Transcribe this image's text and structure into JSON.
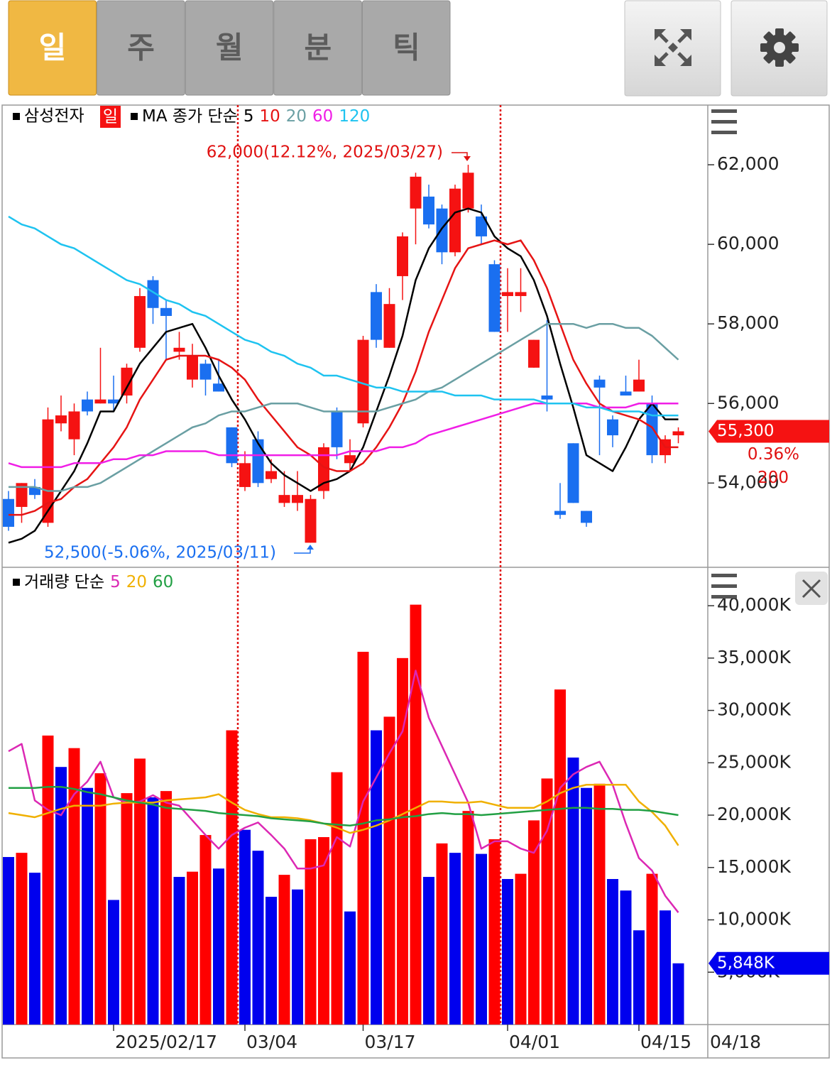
{
  "toolbar": {
    "tabs": [
      "일",
      "주",
      "월",
      "분",
      "틱"
    ],
    "active": 0
  },
  "chart_data": [
    {
      "type": "candlestick",
      "title": "삼성전자",
      "period_badge": "일",
      "ma_label": "MA 종가 단순",
      "up_color": "#f51212",
      "down_color": "#1a6ff0",
      "open": [
        53600,
        53400,
        53900,
        53000,
        55500,
        55100,
        56100,
        56000,
        56100,
        56200,
        57400,
        59100,
        58400,
        57300,
        56600,
        57000,
        56500,
        55400,
        53900,
        55100,
        54100,
        53500,
        53500,
        52500,
        53800,
        55800,
        54500,
        55500,
        58800,
        57400,
        59200,
        60900,
        61200,
        60900,
        59800,
        60900,
        60700,
        59500,
        58700,
        58700,
        56900,
        56200,
        53300,
        55000,
        53300,
        56600,
        55600,
        56300,
        56300,
        56000,
        54700,
        55200
      ],
      "high": [
        53800,
        54000,
        54100,
        55900,
        56200,
        56000,
        56300,
        57400,
        56700,
        57000,
        58900,
        59200,
        58600,
        57800,
        57500,
        57100,
        57100,
        55400,
        54800,
        55300,
        54600,
        54300,
        54300,
        53700,
        55000,
        55900,
        55100,
        57700,
        59000,
        58900,
        60300,
        61800,
        61500,
        61000,
        61500,
        62000,
        61000,
        59600,
        59400,
        59400,
        57600,
        58100,
        54000,
        55000,
        53300,
        56700,
        55700,
        56700,
        57100,
        56200,
        55200,
        55400
      ],
      "low": [
        52800,
        53000,
        53600,
        52900,
        55300,
        54700,
        55700,
        56000,
        55800,
        56000,
        57300,
        58000,
        57100,
        57100,
        56400,
        56200,
        56300,
        54400,
        53800,
        53900,
        54000,
        53400,
        53300,
        52500,
        53600,
        54600,
        54300,
        55400,
        57400,
        57400,
        58600,
        60000,
        60400,
        59500,
        59700,
        60800,
        60000,
        57800,
        57800,
        58300,
        56900,
        55800,
        53100,
        53500,
        52900,
        54700,
        54900,
        56200,
        56300,
        54500,
        54500,
        55000
      ],
      "close": [
        52900,
        54000,
        53700,
        55600,
        55700,
        55800,
        55800,
        56100,
        56000,
        56900,
        58700,
        58400,
        58200,
        57400,
        57200,
        56600,
        56300,
        54500,
        54500,
        54000,
        54300,
        53700,
        53700,
        53600,
        54900,
        54900,
        54700,
        57600,
        57600,
        58500,
        60200,
        61700,
        60500,
        59800,
        61400,
        61800,
        60200,
        57800,
        58800,
        58800,
        57600,
        56100,
        53200,
        53500,
        53000,
        56400,
        55200,
        56200,
        56600,
        54700,
        55100,
        55300
      ],
      "series": [
        {
          "name": "5",
          "color": "#000000",
          "values": [
            52500,
            52600,
            52800,
            53300,
            53800,
            54300,
            55000,
            55800,
            55800,
            56400,
            57000,
            57400,
            57800,
            57900,
            58000,
            57400,
            56700,
            56100,
            55600,
            55000,
            54500,
            54200,
            54000,
            53800,
            54000,
            54100,
            54300,
            54900,
            55800,
            56700,
            57700,
            59100,
            59900,
            60400,
            60800,
            60900,
            60800,
            60200,
            59900,
            59700,
            59100,
            58200,
            57000,
            55900,
            54700,
            54500,
            54300,
            54900,
            55600,
            56000,
            55600,
            55600
          ]
        },
        {
          "name": "10",
          "color": "#e61414",
          "values": [
            53200,
            53200,
            53300,
            53500,
            53600,
            53900,
            54100,
            54500,
            54900,
            55400,
            56100,
            56600,
            57100,
            57200,
            57200,
            57200,
            57100,
            56900,
            56600,
            56100,
            55700,
            55300,
            54900,
            54700,
            54400,
            54300,
            54300,
            54500,
            54900,
            55400,
            56000,
            56800,
            57800,
            58600,
            59400,
            59900,
            60000,
            60100,
            60000,
            60100,
            59600,
            58900,
            58000,
            57100,
            56500,
            56000,
            55800,
            55700,
            55600,
            55400,
            54900,
            54900
          ]
        },
        {
          "name": "20",
          "color": "#6a9fa3",
          "values": [
            53900,
            53900,
            53900,
            53800,
            53800,
            53900,
            53900,
            54000,
            54200,
            54400,
            54600,
            54800,
            55000,
            55200,
            55400,
            55500,
            55700,
            55800,
            55800,
            55900,
            56000,
            56000,
            56000,
            55900,
            55800,
            55800,
            55800,
            55800,
            55800,
            55900,
            56000,
            56100,
            56300,
            56400,
            56600,
            56800,
            57000,
            57200,
            57400,
            57600,
            57800,
            58000,
            58000,
            58000,
            57900,
            58000,
            58000,
            57900,
            57900,
            57700,
            57400,
            57100
          ]
        },
        {
          "name": "60",
          "color": "#f01ee6",
          "values": [
            54500,
            54400,
            54400,
            54400,
            54400,
            54500,
            54500,
            54500,
            54600,
            54600,
            54700,
            54700,
            54800,
            54800,
            54800,
            54800,
            54700,
            54700,
            54700,
            54700,
            54700,
            54700,
            54700,
            54700,
            54700,
            54700,
            54800,
            54800,
            54800,
            54900,
            54900,
            55000,
            55200,
            55300,
            55400,
            55500,
            55600,
            55700,
            55800,
            55900,
            56000,
            56000,
            56000,
            56000,
            56000,
            55900,
            55900,
            55900,
            56000,
            56000,
            56000,
            56000
          ]
        },
        {
          "name": "120",
          "color": "#1ec3f0",
          "values": [
            60700,
            60500,
            60400,
            60200,
            60000,
            59900,
            59700,
            59500,
            59300,
            59100,
            59000,
            58800,
            58600,
            58500,
            58300,
            58200,
            58000,
            57800,
            57600,
            57500,
            57300,
            57200,
            57000,
            56900,
            56700,
            56700,
            56600,
            56500,
            56400,
            56400,
            56300,
            56300,
            56300,
            56300,
            56200,
            56200,
            56200,
            56100,
            56100,
            56100,
            56100,
            56000,
            56000,
            56000,
            55900,
            55900,
            55800,
            55800,
            55800,
            55700,
            55700,
            55700
          ]
        }
      ],
      "ylim": [
        51900,
        63500
      ],
      "yticks": [
        {
          "value": 62000,
          "label": "62,000"
        },
        {
          "value": 60000,
          "label": "60,000"
        },
        {
          "value": 58000,
          "label": "58,000"
        },
        {
          "value": 56000,
          "label": "56,000"
        },
        {
          "value": 54000,
          "label": "54,000"
        }
      ],
      "annotations": [
        "62,000(12.12%, 2025/03/27)",
        "52,500(-5.06%, 2025/03/11)"
      ],
      "last_price": {
        "value": 55300,
        "label": "55,300"
      },
      "change_pct": {
        "value": 0.36,
        "label": "0.36%"
      },
      "change": 200
    },
    {
      "type": "bar",
      "title": "거래량 단순",
      "up_color": "#ff0000",
      "down_color": "#0000ee",
      "categories": [
        null,
        null,
        null,
        null,
        null,
        null,
        null,
        null,
        "2025/02/17",
        null,
        null,
        null,
        null,
        null,
        null,
        null,
        null,
        null,
        "03/04",
        null,
        null,
        null,
        null,
        null,
        null,
        null,
        null,
        "03/17",
        null,
        null,
        null,
        null,
        null,
        null,
        null,
        null,
        null,
        null,
        "04/01",
        null,
        null,
        null,
        null,
        null,
        null,
        null,
        null,
        null,
        "04/15",
        null,
        null,
        null
      ],
      "values": [
        16000,
        16400,
        14500,
        27600,
        24600,
        26400,
        22600,
        24000,
        11900,
        22100,
        25400,
        21700,
        22300,
        14100,
        14600,
        18100,
        14900,
        28100,
        18600,
        16600,
        12200,
        14300,
        12900,
        17700,
        17900,
        24100,
        10800,
        35600,
        28100,
        29400,
        35000,
        40100,
        14100,
        17300,
        16400,
        20400,
        16300,
        17700,
        13900,
        14400,
        19500,
        23500,
        32000,
        25500,
        22600,
        23000,
        13900,
        12800,
        9000,
        14400,
        10900,
        5848
      ],
      "series": [
        {
          "name": "5",
          "color": "#dc28b4",
          "values": [
            26100,
            26800,
            21400,
            20500,
            20000,
            22000,
            23200,
            25100,
            21700,
            21200,
            21300,
            21900,
            21200,
            20900,
            19500,
            18100,
            16800,
            18100,
            18800,
            19300,
            18100,
            16800,
            14900,
            14900,
            15200,
            17900,
            17000,
            21300,
            23600,
            25900,
            28000,
            33800,
            29300,
            26600,
            23900,
            21200,
            16800,
            17500,
            17500,
            16800,
            16400,
            18500,
            22600,
            23900,
            24600,
            25100,
            22900,
            19200,
            15900,
            14700,
            12300,
            10700
          ]
        },
        {
          "name": "20",
          "color": "#f0b000",
          "values": [
            20200,
            20000,
            19800,
            20200,
            20600,
            20900,
            20900,
            20900,
            21100,
            21200,
            21200,
            21200,
            21400,
            21500,
            21600,
            21700,
            22000,
            21200,
            20500,
            20100,
            19800,
            19800,
            19700,
            19500,
            19200,
            18800,
            18300,
            18600,
            19000,
            19500,
            20100,
            20700,
            21300,
            21300,
            21200,
            21200,
            21300,
            21000,
            20700,
            20700,
            20700,
            21300,
            22100,
            22600,
            22900,
            22900,
            22900,
            22900,
            21300,
            20300,
            19000,
            17100
          ]
        },
        {
          "name": "60",
          "color": "#22a044",
          "values": [
            22600,
            22600,
            22600,
            22700,
            22700,
            22500,
            22200,
            22000,
            21700,
            21400,
            21200,
            21000,
            20700,
            20600,
            20500,
            20400,
            20200,
            20100,
            20000,
            19900,
            19700,
            19600,
            19500,
            19400,
            19200,
            19100,
            19000,
            19200,
            19500,
            19600,
            19800,
            19900,
            20100,
            20200,
            20100,
            20100,
            20000,
            20100,
            20200,
            20300,
            20400,
            20500,
            20600,
            20700,
            20700,
            20600,
            20600,
            20500,
            20500,
            20400,
            20200,
            20000
          ]
        }
      ],
      "ylim": [
        0,
        43600
      ],
      "yticks": [
        {
          "value": 40000,
          "label": "40,000K"
        },
        {
          "value": 35000,
          "label": "35,000K"
        },
        {
          "value": 30000,
          "label": "30,000K"
        },
        {
          "value": 25000,
          "label": "25,000K"
        },
        {
          "value": 20000,
          "label": "20,000K"
        },
        {
          "value": 15000,
          "label": "15,000K"
        },
        {
          "value": 10000,
          "label": "10,000K"
        },
        {
          "value": 5000,
          "label": "5,000K"
        }
      ],
      "last_value": {
        "value": 5848,
        "label": "5,848K"
      },
      "last_date": "04/18"
    }
  ]
}
